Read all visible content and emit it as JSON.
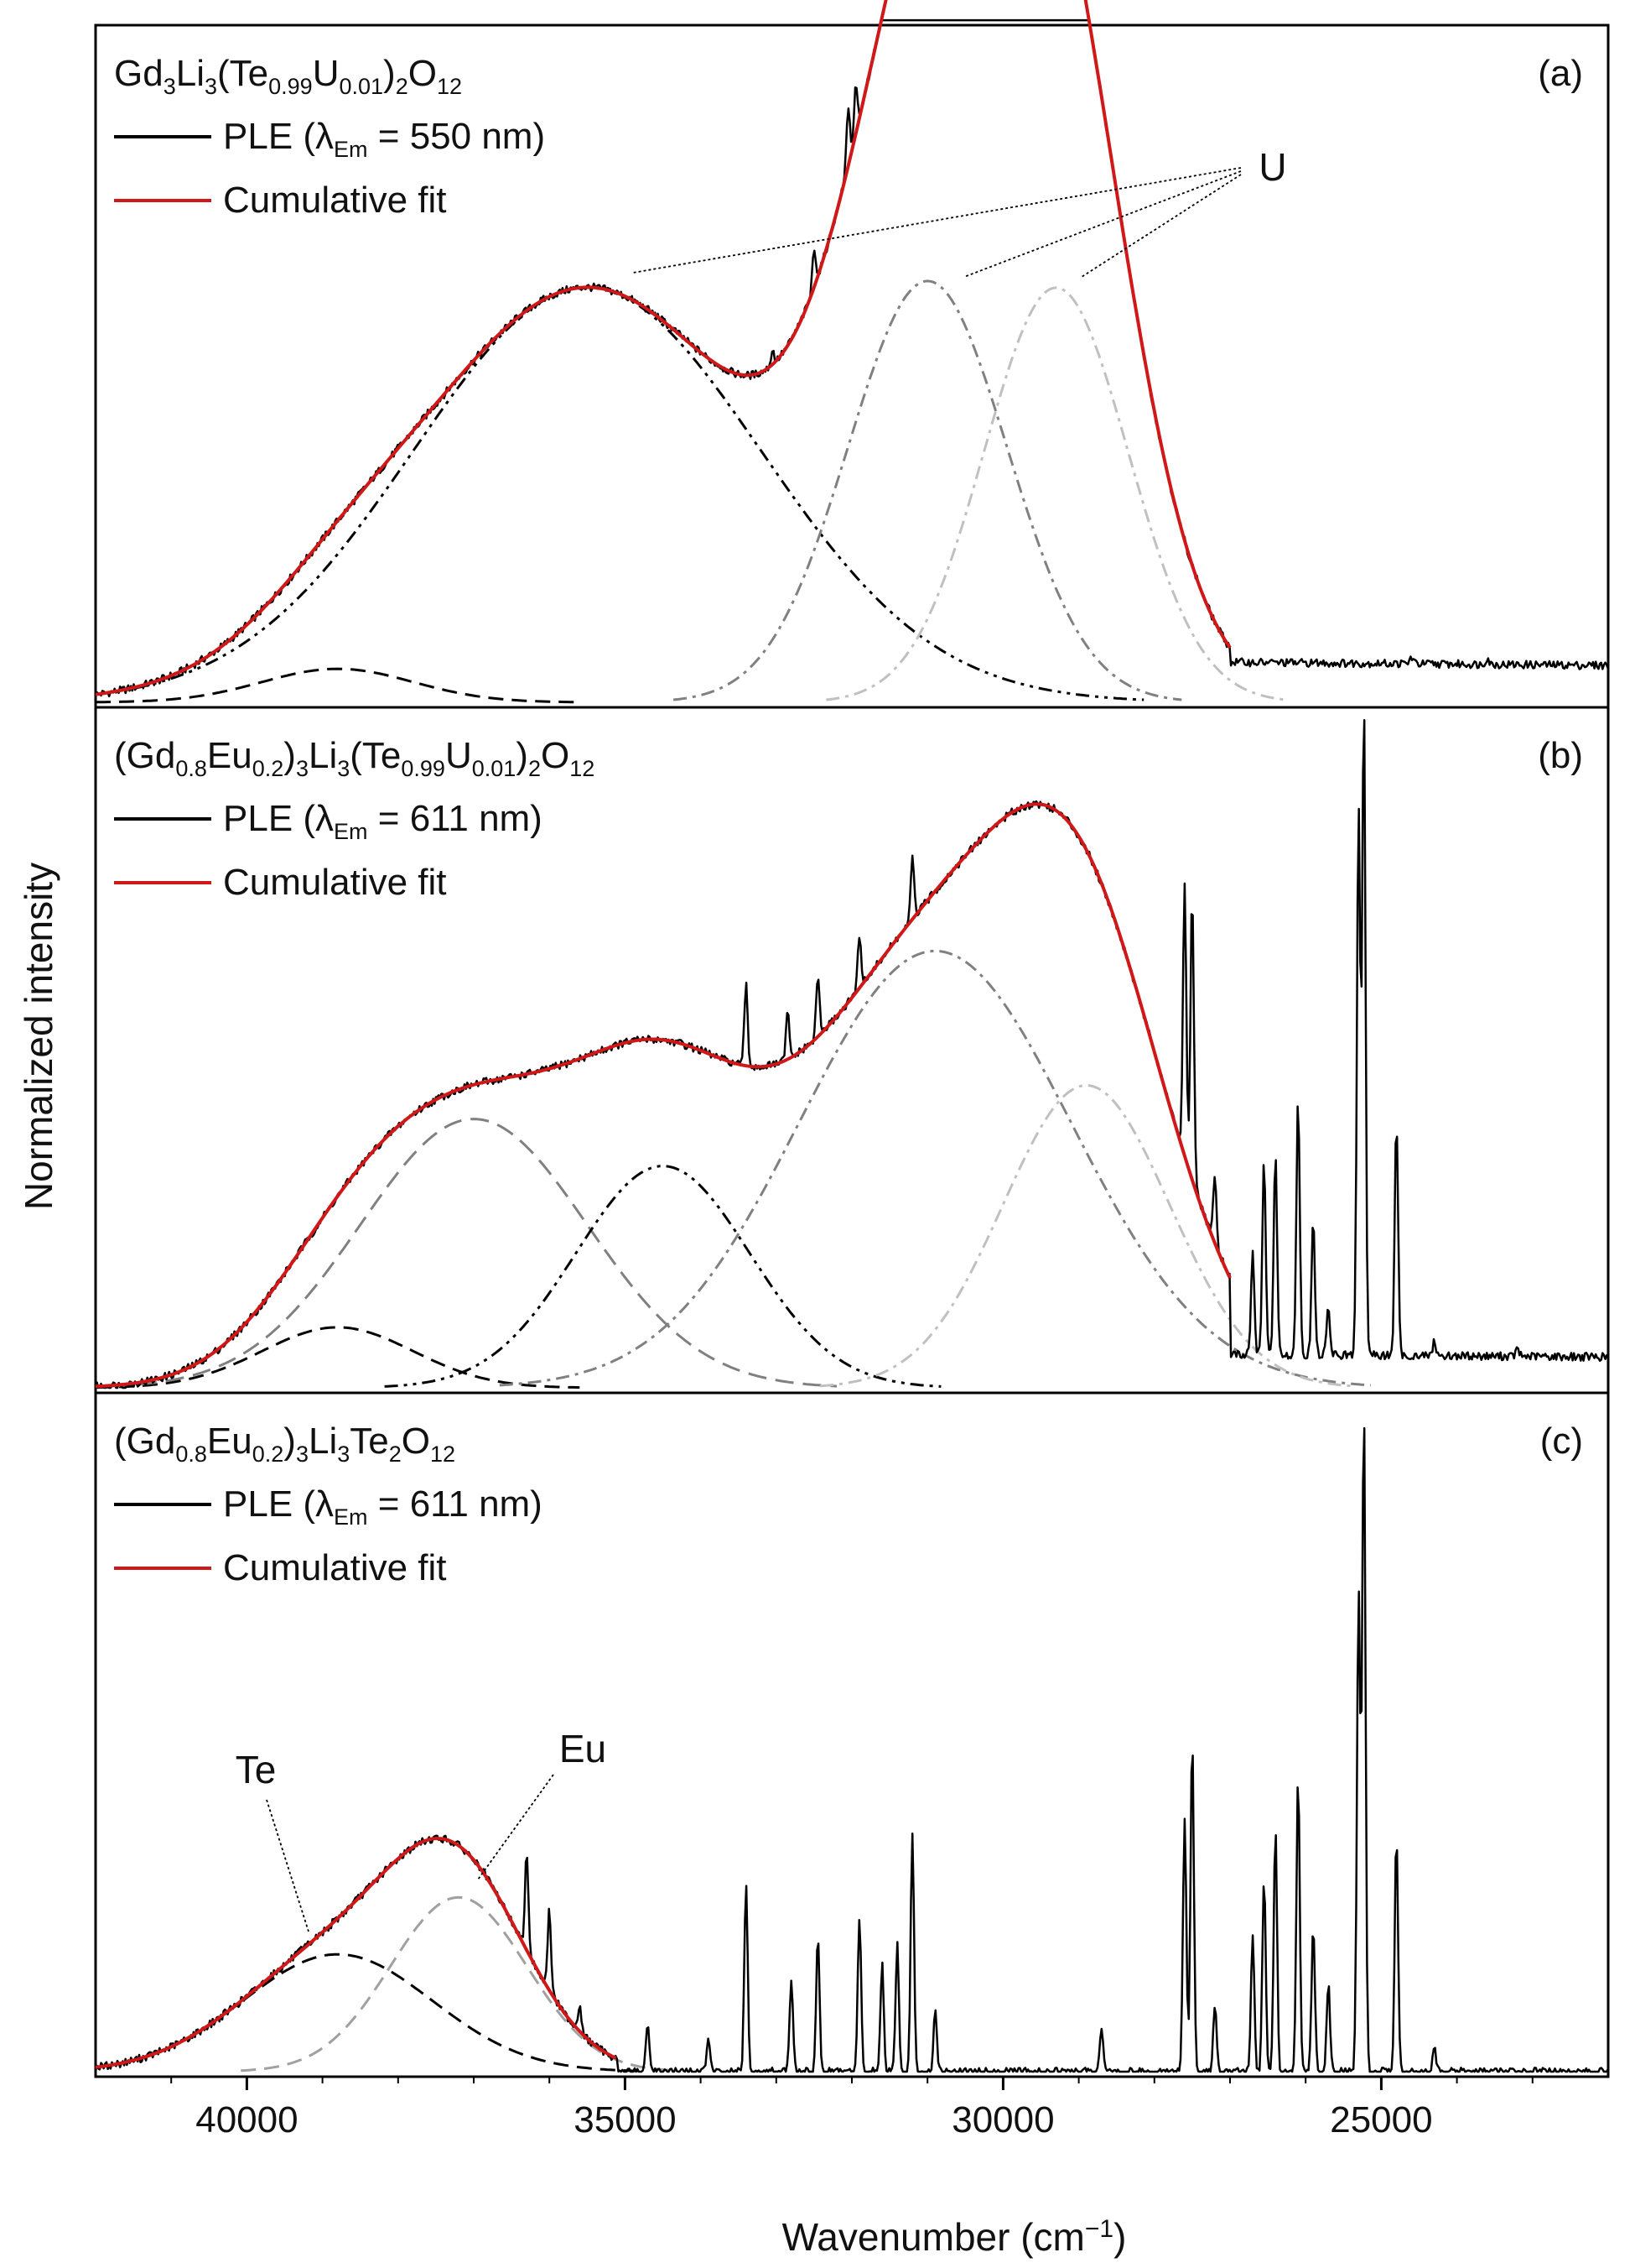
{
  "chart_data": {
    "type": "line",
    "xlabel": {
      "text": "Wavenumber (cm",
      "sup": "−1",
      "close": ")"
    },
    "ylabel": "Normalized intensity",
    "x_range": [
      42000,
      22000
    ],
    "x_ticks": [
      40000,
      35000,
      30000,
      25000
    ],
    "x_tick_labels": [
      "40000",
      "35000",
      "30000",
      "25000"
    ],
    "y_range": [
      0,
      1
    ],
    "panels": [
      {
        "tag": "(a)",
        "title_parts": [
          {
            "t": "Gd"
          },
          {
            "t": "3",
            "sub": true
          },
          {
            "t": "Li"
          },
          {
            "t": "3",
            "sub": true
          },
          {
            "t": "(Te"
          },
          {
            "t": "0.99",
            "sub": true
          },
          {
            "t": "U"
          },
          {
            "t": "0.01",
            "sub": true
          },
          {
            "t": ")"
          },
          {
            "t": "2",
            "sub": true
          },
          {
            "t": "O"
          },
          {
            "t": "12",
            "sub": true
          }
        ],
        "legend": [
          {
            "label": "PLE (λ",
            "label_sub": "Em",
            "label_end": " = 550 nm)",
            "color": "#000000"
          },
          {
            "label": "Cumulative fit",
            "color": "#d01818"
          }
        ],
        "components": [
          {
            "center": 38800,
            "amplitude": 0.05,
            "sigma": 1000,
            "color": "#000000",
            "dash": "18,10"
          },
          {
            "center": 35500,
            "amplitude": 0.62,
            "sigma": 2300,
            "color": "#000000",
            "dash": "16,7,4,7,4,7"
          },
          {
            "center": 31000,
            "amplitude": 0.63,
            "sigma": 1050,
            "color": "#808080",
            "dash": "16,7,4,7"
          },
          {
            "center": 29300,
            "amplitude": 0.62,
            "sigma": 950,
            "color": "#c0c0c0",
            "dash": "16,7,4,7"
          },
          {
            "center": 30100,
            "amplitude": 0.55,
            "sigma": 1400,
            "color": "none",
            "dash": ""
          }
        ],
        "fit_range": [
          42000,
          27000
        ],
        "tail_level": 0.06,
        "sharp_lines": [
          {
            "x": 32500,
            "h": 0.06
          },
          {
            "x": 32050,
            "h": 0.09
          },
          {
            "x": 31950,
            "h": 0.07
          },
          {
            "x": 33050,
            "h": 0.02
          },
          {
            "x": 24600,
            "h": 0.01
          },
          {
            "x": 23600,
            "h": 0.01
          }
        ],
        "annotations": [
          {
            "text": "U"
          }
        ]
      },
      {
        "tag": "(b)",
        "title_parts": [
          {
            "t": "(Gd"
          },
          {
            "t": "0.8",
            "sub": true
          },
          {
            "t": "Eu"
          },
          {
            "t": "0.2",
            "sub": true
          },
          {
            "t": ")"
          },
          {
            "t": "3",
            "sub": true
          },
          {
            "t": "Li"
          },
          {
            "t": "3",
            "sub": true
          },
          {
            "t": "(Te"
          },
          {
            "t": "0.99",
            "sub": true
          },
          {
            "t": "U"
          },
          {
            "t": "0.01",
            "sub": true
          },
          {
            "t": ")"
          },
          {
            "t": "2",
            "sub": true
          },
          {
            "t": "O"
          },
          {
            "t": "12",
            "sub": true
          }
        ],
        "legend": [
          {
            "label": "PLE (λ",
            "label_sub": "Em",
            "label_end": " = 611 nm)",
            "color": "#000000"
          },
          {
            "label": "Cumulative fit",
            "color": "#d01818"
          }
        ],
        "components": [
          {
            "center": 38800,
            "amplitude": 0.09,
            "sigma": 1000,
            "color": "#000000",
            "dash": "18,10"
          },
          {
            "center": 37000,
            "amplitude": 0.4,
            "sigma": 1500,
            "color": "#808080",
            "dash": "22,11"
          },
          {
            "center": 34500,
            "amplitude": 0.33,
            "sigma": 1150,
            "color": "#000000",
            "dash": "16,7,4,7,4,7"
          },
          {
            "center": 30900,
            "amplitude": 0.65,
            "sigma": 1800,
            "color": "#808080",
            "dash": "16,7,4,7"
          },
          {
            "center": 28900,
            "amplitude": 0.45,
            "sigma": 1100,
            "color": "#c0c0c0",
            "dash": "16,7,4,7"
          }
        ],
        "fit_range": [
          42000,
          27000
        ],
        "tail_level": 0.05,
        "sharp_lines": [
          {
            "x": 33400,
            "h": 0.12
          },
          {
            "x": 32850,
            "h": 0.07
          },
          {
            "x": 32450,
            "h": 0.09
          },
          {
            "x": 31900,
            "h": 0.08
          },
          {
            "x": 31200,
            "h": 0.09
          },
          {
            "x": 27600,
            "h": 0.4
          },
          {
            "x": 27500,
            "h": 0.43
          },
          {
            "x": 27200,
            "h": 0.1
          },
          {
            "x": 26700,
            "h": 0.15
          },
          {
            "x": 26550,
            "h": 0.29
          },
          {
            "x": 26400,
            "h": 0.3
          },
          {
            "x": 26100,
            "h": 0.38
          },
          {
            "x": 25900,
            "h": 0.2
          },
          {
            "x": 25700,
            "h": 0.07
          },
          {
            "x": 25300,
            "h": 0.82
          },
          {
            "x": 25230,
            "h": 0.98
          },
          {
            "x": 24800,
            "h": 0.35
          },
          {
            "x": 24300,
            "h": 0.02
          },
          {
            "x": 23200,
            "h": 0.01
          }
        ],
        "annotations": []
      },
      {
        "tag": "(c)",
        "title_parts": [
          {
            "t": "(Gd"
          },
          {
            "t": "0.8",
            "sub": true
          },
          {
            "t": "Eu"
          },
          {
            "t": "0.2",
            "sub": true
          },
          {
            "t": ")"
          },
          {
            "t": "3",
            "sub": true
          },
          {
            "t": "Li"
          },
          {
            "t": "3",
            "sub": true
          },
          {
            "t": "Te"
          },
          {
            "t": "2",
            "sub": true
          },
          {
            "t": "O"
          },
          {
            "t": "12",
            "sub": true
          }
        ],
        "legend": [
          {
            "label": "PLE (λ",
            "label_sub": "Em",
            "label_end": " = 611 nm)",
            "color": "#000000"
          },
          {
            "label": "Cumulative fit",
            "color": "#d01818"
          }
        ],
        "components": [
          {
            "center": 38800,
            "amplitude": 0.175,
            "sigma": 1250,
            "color": "#000000",
            "dash": "18,10"
          },
          {
            "center": 37200,
            "amplitude": 0.26,
            "sigma": 900,
            "color": "#a0a0a0",
            "dash": "18,10"
          }
        ],
        "fit_range": [
          42000,
          35100
        ],
        "tail_level": 0.0,
        "sharp_lines": [
          {
            "x": 36300,
            "h": 0.15
          },
          {
            "x": 36000,
            "h": 0.12
          },
          {
            "x": 35600,
            "h": 0.04
          },
          {
            "x": 34700,
            "h": 0.07
          },
          {
            "x": 33900,
            "h": 0.05
          },
          {
            "x": 33400,
            "h": 0.28
          },
          {
            "x": 32800,
            "h": 0.14
          },
          {
            "x": 32450,
            "h": 0.2
          },
          {
            "x": 31900,
            "h": 0.23
          },
          {
            "x": 31600,
            "h": 0.16
          },
          {
            "x": 31400,
            "h": 0.19
          },
          {
            "x": 31200,
            "h": 0.35
          },
          {
            "x": 30900,
            "h": 0.09
          },
          {
            "x": 28700,
            "h": 0.06
          },
          {
            "x": 27600,
            "h": 0.38
          },
          {
            "x": 27500,
            "h": 0.5
          },
          {
            "x": 27200,
            "h": 0.1
          },
          {
            "x": 26700,
            "h": 0.2
          },
          {
            "x": 26550,
            "h": 0.29
          },
          {
            "x": 26400,
            "h": 0.36
          },
          {
            "x": 26100,
            "h": 0.44
          },
          {
            "x": 25900,
            "h": 0.22
          },
          {
            "x": 25700,
            "h": 0.13
          },
          {
            "x": 25300,
            "h": 0.72
          },
          {
            "x": 25230,
            "h": 1.0
          },
          {
            "x": 24800,
            "h": 0.35
          },
          {
            "x": 24300,
            "h": 0.04
          }
        ],
        "annotations": [
          {
            "text": "Te"
          },
          {
            "text": "Eu"
          }
        ]
      }
    ]
  }
}
